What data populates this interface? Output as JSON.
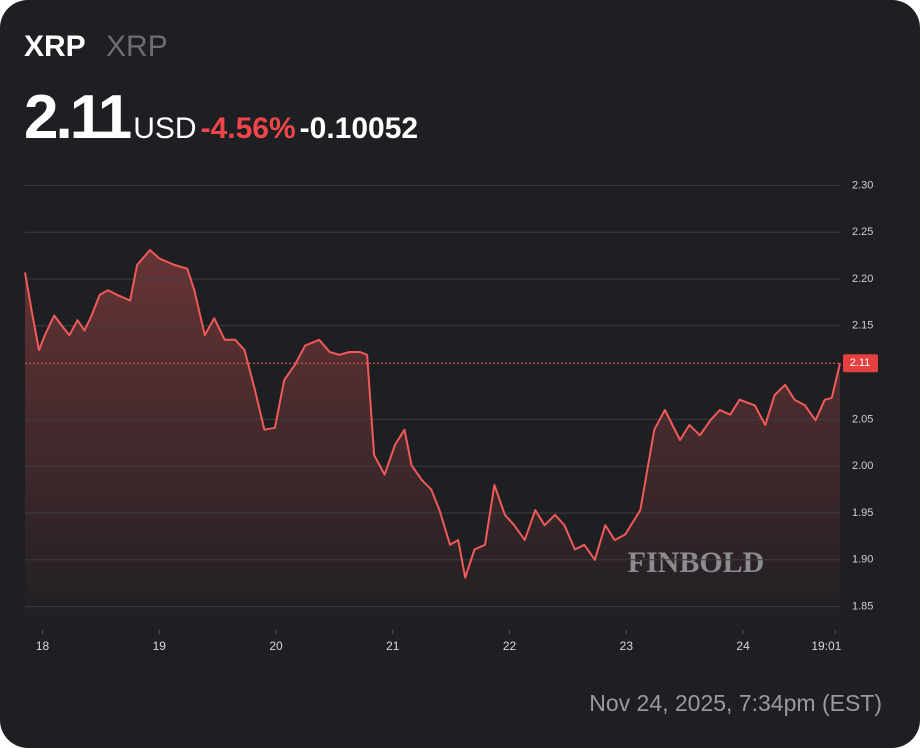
{
  "header": {
    "symbol": "XRP",
    "name": "XRP",
    "price": 2.11,
    "currency": "USD",
    "change_percent": {
      "value": -4.56,
      "label": "-4.56%"
    },
    "change": -0.10052
  },
  "chart_data": {
    "type": "line",
    "watermark": "FINBOLD",
    "grid": true,
    "series": [
      {
        "name": "XRP",
        "color": "#f05a57",
        "x": [
          17.85,
          17.91,
          17.97,
          18.02,
          18.1,
          18.16,
          18.23,
          18.3,
          18.36,
          18.42,
          18.49,
          18.56,
          18.64,
          18.75,
          18.81,
          18.92,
          19.0,
          19.13,
          19.24,
          19.3,
          19.39,
          19.47,
          19.56,
          19.65,
          19.73,
          19.82,
          19.9,
          19.99,
          20.07,
          20.16,
          20.25,
          20.37,
          20.46,
          20.54,
          20.63,
          20.72,
          20.78,
          20.84,
          20.93,
          21.02,
          21.1,
          21.16,
          21.25,
          21.33,
          21.4,
          21.49,
          21.56,
          21.62,
          21.7,
          21.79,
          21.87,
          21.96,
          22.04,
          22.13,
          22.22,
          22.3,
          22.39,
          22.47,
          22.56,
          22.64,
          22.73,
          22.82,
          22.9,
          22.99,
          23.12,
          23.24,
          23.33,
          23.46,
          23.54,
          23.63,
          23.72,
          23.8,
          23.89,
          23.97,
          24.1,
          24.19,
          24.27,
          24.36,
          24.44,
          24.53,
          24.62,
          24.7,
          24.76,
          24.83
        ],
        "values": [
          2.207,
          2.164,
          2.124,
          2.14,
          2.161,
          2.151,
          2.14,
          2.156,
          2.145,
          2.161,
          2.183,
          2.188,
          2.183,
          2.177,
          2.215,
          2.231,
          2.222,
          2.215,
          2.211,
          2.188,
          2.14,
          2.158,
          2.135,
          2.135,
          2.124,
          2.081,
          2.039,
          2.041,
          2.092,
          2.108,
          2.129,
          2.135,
          2.122,
          2.119,
          2.122,
          2.122,
          2.119,
          2.012,
          1.991,
          2.023,
          2.039,
          2.001,
          1.985,
          1.975,
          1.953,
          1.916,
          1.921,
          1.881,
          1.911,
          1.916,
          1.98,
          1.948,
          1.937,
          1.921,
          1.953,
          1.937,
          1.948,
          1.937,
          1.911,
          1.916,
          1.9,
          1.937,
          1.921,
          1.927,
          1.953,
          2.039,
          2.06,
          2.028,
          2.044,
          2.033,
          2.049,
          2.06,
          2.055,
          2.071,
          2.065,
          2.044,
          2.076,
          2.087,
          2.071,
          2.065,
          2.049,
          2.071,
          2.073,
          2.11
        ]
      }
    ],
    "last_price": 2.11,
    "xlim": [
      17.85,
      24.83
    ],
    "xticks": [
      18,
      19,
      20,
      21,
      22,
      23,
      24,
      {
        "value": 24.79,
        "label": "19:01"
      }
    ],
    "ylim": [
      1.825,
      2.325
    ],
    "yticks": [
      {
        "value": 2.3,
        "label": "2.30"
      },
      2.25,
      {
        "value": 2.2,
        "label": "2.20"
      },
      2.15,
      2.05,
      {
        "value": 2,
        "label": "2.00"
      },
      1.95,
      {
        "value": 1.9,
        "label": "1.90"
      },
      1.85
    ],
    "timestamp": "Nov 24, 2025, 7:34pm (EST)"
  }
}
